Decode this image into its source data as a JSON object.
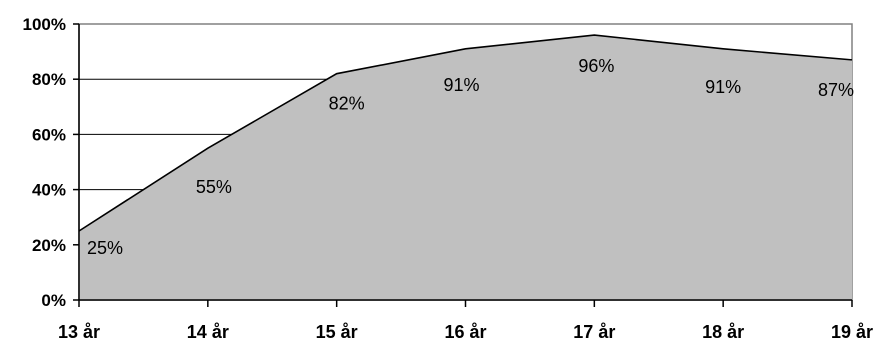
{
  "chart_data": {
    "type": "area",
    "categories": [
      "13 år",
      "14 år",
      "15 år",
      "16 år",
      "17 år",
      "18 år",
      "19 år"
    ],
    "values": [
      25,
      55,
      82,
      91,
      96,
      91,
      87
    ],
    "data_labels": [
      "25%",
      "55%",
      "82%",
      "91%",
      "96%",
      "91%",
      "87%"
    ],
    "y_ticks": [
      "0%",
      "20%",
      "40%",
      "60%",
      "80%",
      "100%"
    ],
    "ylim": [
      0,
      100
    ],
    "grid": true,
    "legend": "none",
    "colors": {
      "area_fill": "#c0c0c0",
      "line": "#000000",
      "plot_border": "#808080",
      "gridline": "#000000"
    }
  }
}
